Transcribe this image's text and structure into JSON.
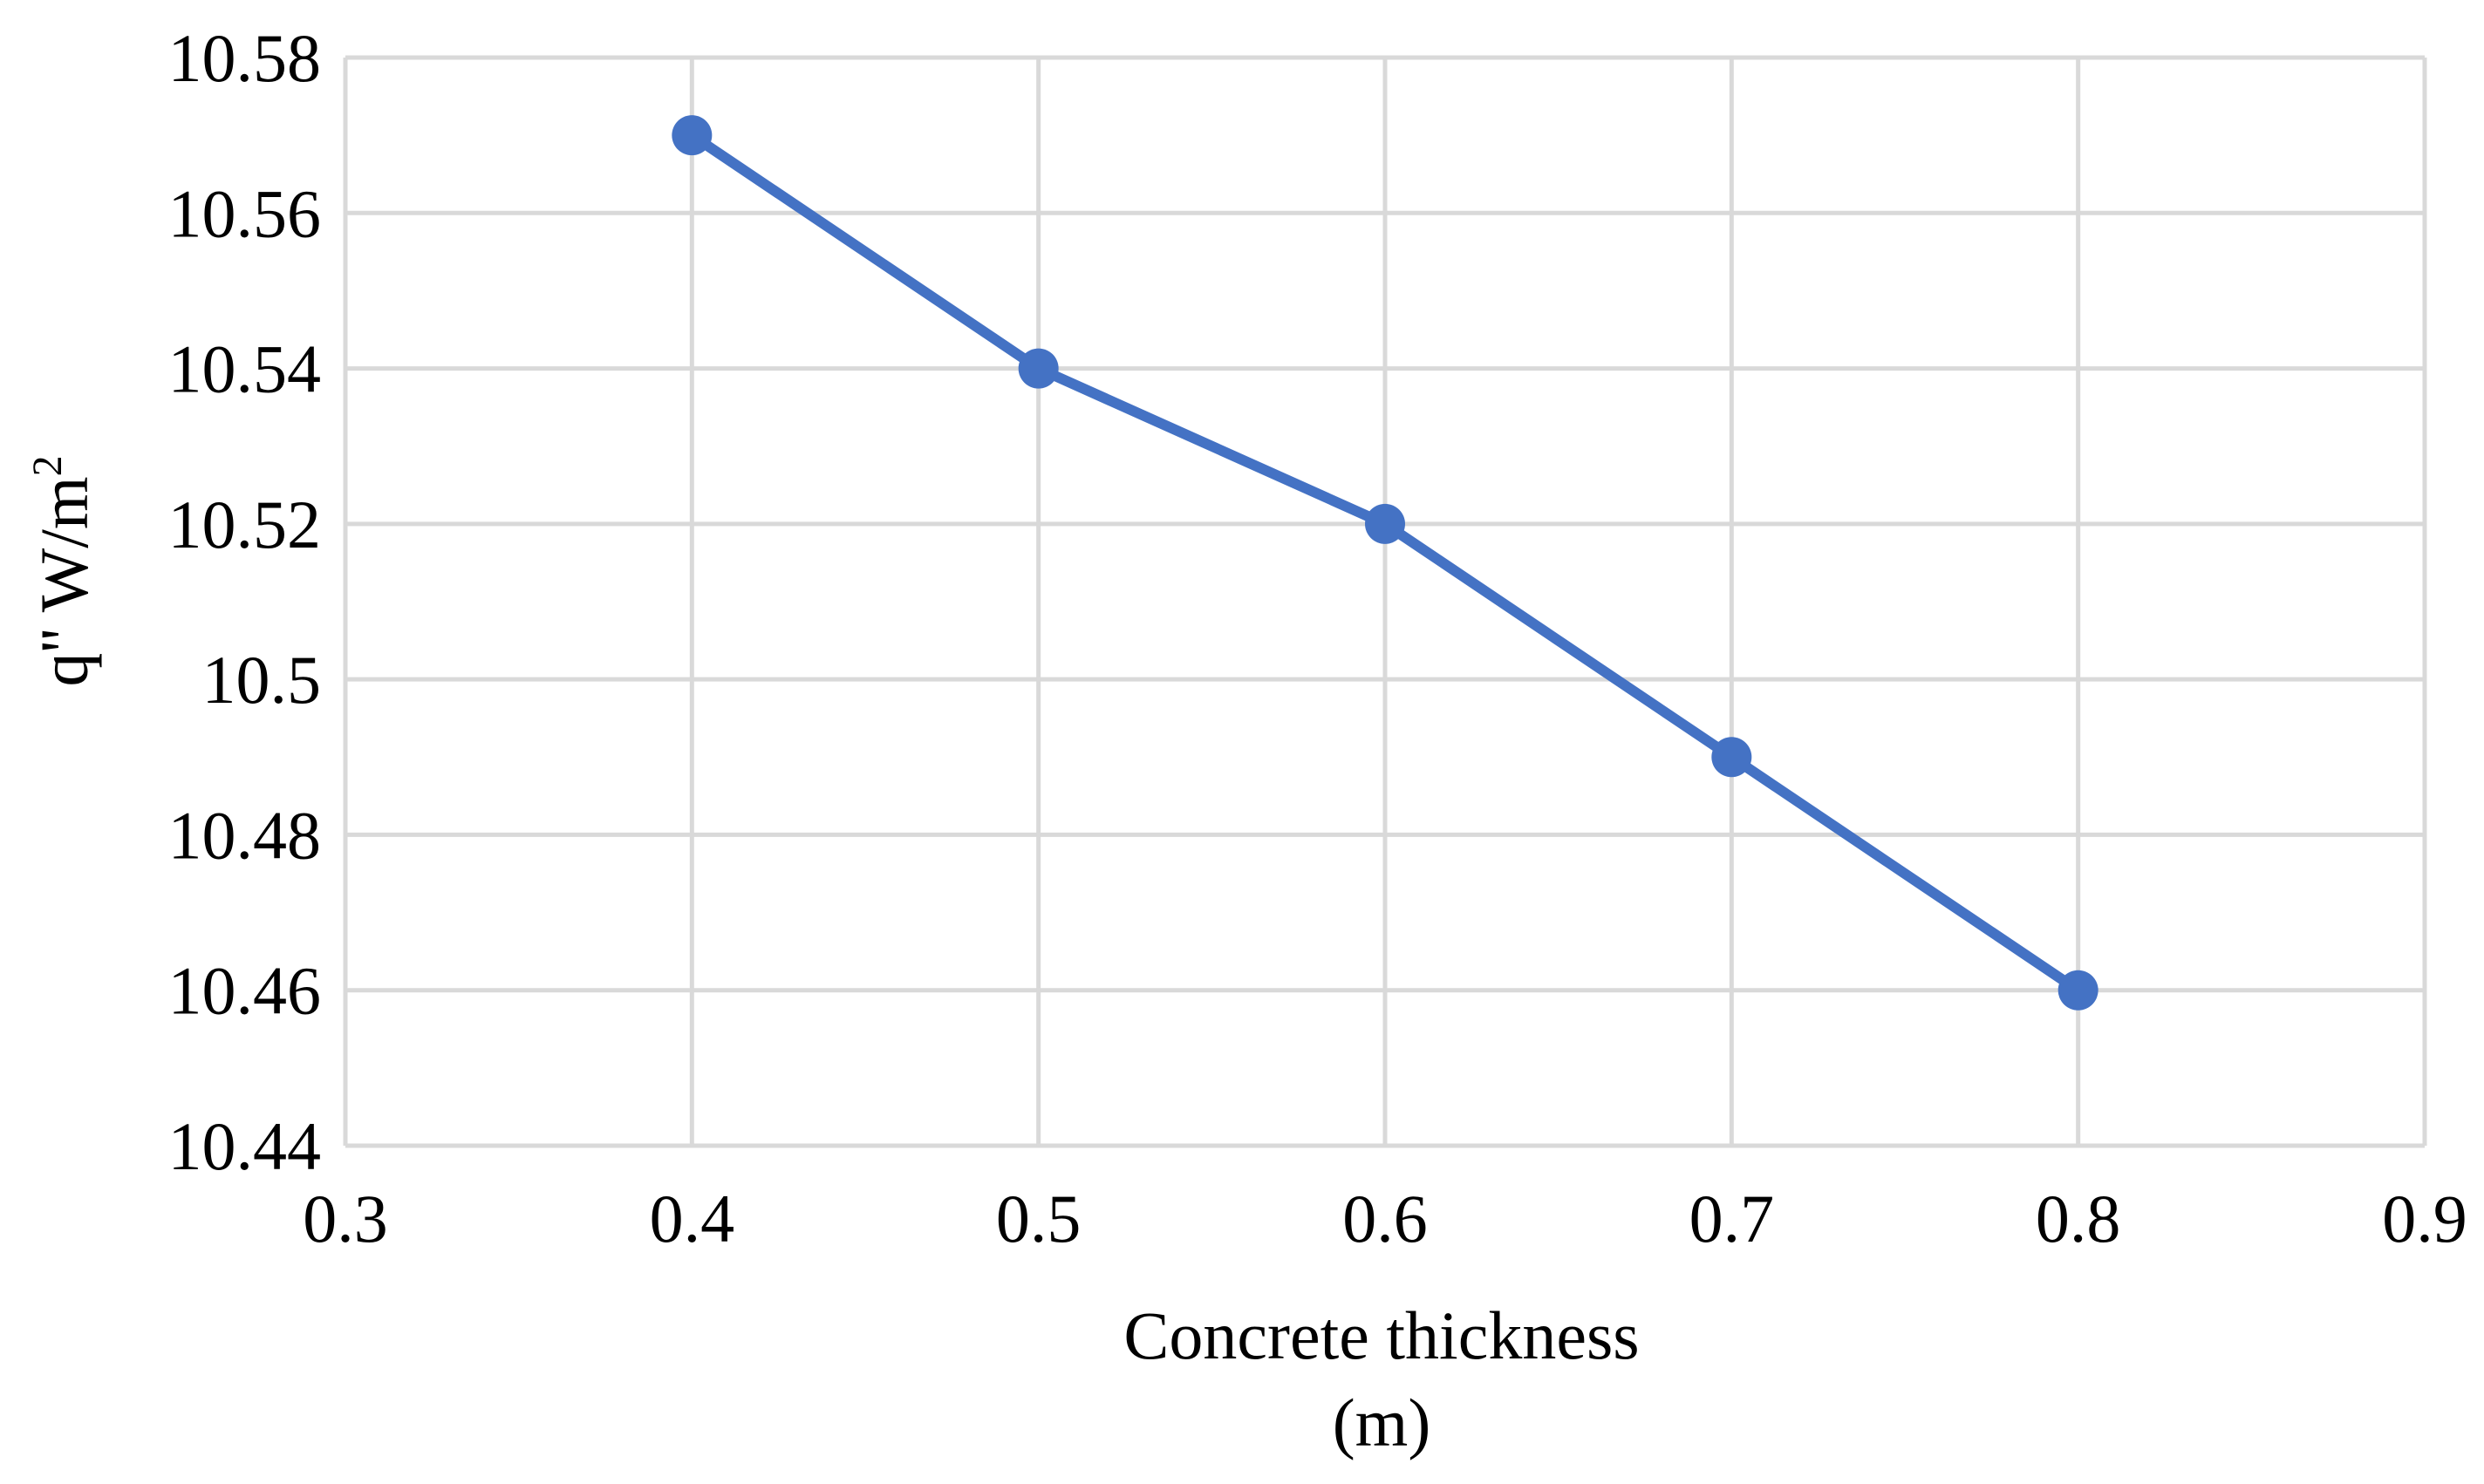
{
  "chart_data": {
    "type": "line",
    "title": "",
    "xlabel": "Concrete thickness",
    "xlabel_line2": "(m)",
    "ylabel": "q'' W/m",
    "ylabel_sup": "2",
    "x": [
      0.4,
      0.5,
      0.6,
      0.7,
      0.8
    ],
    "series": [
      {
        "values": [
          10.57,
          10.54,
          10.52,
          10.49,
          10.46
        ]
      }
    ],
    "xlim": [
      0.3,
      0.9
    ],
    "ylim": [
      10.44,
      10.58
    ],
    "x_ticks": [
      0.3,
      0.4,
      0.5,
      0.6,
      0.7,
      0.8,
      0.9
    ],
    "x_tick_labels": [
      "0.3",
      "0.4",
      "0.5",
      "0.6",
      "0.7",
      "0.8",
      "0.9"
    ],
    "y_ticks": [
      10.44,
      10.46,
      10.48,
      10.5,
      10.52,
      10.54,
      10.56,
      10.58
    ],
    "y_tick_labels": [
      "10.44",
      "10.46",
      "10.48",
      "10.5",
      "10.52",
      "10.54",
      "10.56",
      "10.58"
    ],
    "grid": true,
    "legend": "none",
    "colors": {
      "line": "#4472c4",
      "grid": "#d9d9d9",
      "text": "#000000"
    }
  }
}
